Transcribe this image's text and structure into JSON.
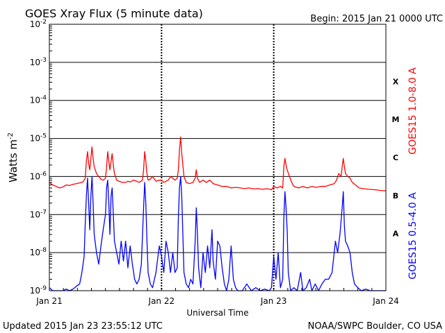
{
  "header": {
    "title": "GOES Xray Flux (5 minute data)",
    "begin": "Begin:  2015 Jan 21 0000 UTC"
  },
  "footer": {
    "updated": "Updated 2015 Jan 23 23:55:12 UTC",
    "credit": "NOAA/SWPC Boulder, CO USA"
  },
  "chart_data": {
    "type": "line",
    "title": "GOES Xray Flux (5 minute data)",
    "xlabel": "Universal Time",
    "ylabel": "Watts m",
    "ylabel_superscript": "-2",
    "yscale": "log",
    "ylim": [
      1e-09,
      0.01
    ],
    "y_ticks": [
      {
        "mantissa": "10",
        "exp": "-9",
        "value": 1e-09
      },
      {
        "mantissa": "10",
        "exp": "-8",
        "value": 1e-08
      },
      {
        "mantissa": "10",
        "exp": "-7",
        "value": 1e-07
      },
      {
        "mantissa": "10",
        "exp": "-6",
        "value": 1e-06
      },
      {
        "mantissa": "10",
        "exp": "-5",
        "value": 1e-05
      },
      {
        "mantissa": "10",
        "exp": "-4",
        "value": 0.0001
      },
      {
        "mantissa": "10",
        "exp": "-3",
        "value": 0.001
      },
      {
        "mantissa": "10",
        "exp": "-2",
        "value": 0.01
      }
    ],
    "xlim_days": [
      0,
      3
    ],
    "x_ticks": [
      {
        "label": "Jan 21",
        "day": 0
      },
      {
        "label": "Jan 22",
        "day": 1
      },
      {
        "label": "Jan 23",
        "day": 2
      },
      {
        "label": "Jan 24",
        "day": 3
      }
    ],
    "flare_classes": [
      {
        "label": "A",
        "value": 3.16e-08
      },
      {
        "label": "B",
        "value": 3.16e-07
      },
      {
        "label": "C",
        "value": 3.16e-06
      },
      {
        "label": "M",
        "value": 3.16e-05
      },
      {
        "label": "X",
        "value": 0.000316
      }
    ],
    "grid": true,
    "colors": {
      "long": "#ff0000",
      "short": "#0000ff",
      "grid": "#000000"
    },
    "series": [
      {
        "name": "GOES15 1.0-8.0 A",
        "color": "#ff0000",
        "points": [
          [
            0.0,
            7e-07
          ],
          [
            0.03,
            6e-07
          ],
          [
            0.06,
            5.5e-07
          ],
          [
            0.09,
            5e-07
          ],
          [
            0.12,
            5.3e-07
          ],
          [
            0.15,
            6e-07
          ],
          [
            0.18,
            5.8e-07
          ],
          [
            0.21,
            6.2e-07
          ],
          [
            0.24,
            6.5e-07
          ],
          [
            0.27,
            6.8e-07
          ],
          [
            0.3,
            7.2e-07
          ],
          [
            0.32,
            9e-07
          ],
          [
            0.33,
            2.5e-06
          ],
          [
            0.34,
            4.5e-06
          ],
          [
            0.35,
            2.2e-06
          ],
          [
            0.36,
            1.5e-06
          ],
          [
            0.37,
            3e-06
          ],
          [
            0.38,
            6e-06
          ],
          [
            0.39,
            3e-06
          ],
          [
            0.4,
            1.8e-06
          ],
          [
            0.42,
            1.2e-06
          ],
          [
            0.44,
            1e-06
          ],
          [
            0.46,
            8.5e-07
          ],
          [
            0.48,
            8e-07
          ],
          [
            0.5,
            9e-07
          ],
          [
            0.51,
            1.8e-06
          ],
          [
            0.52,
            4.5e-06
          ],
          [
            0.53,
            2.5e-06
          ],
          [
            0.54,
            1.5e-06
          ],
          [
            0.55,
            2.5e-06
          ],
          [
            0.56,
            4e-06
          ],
          [
            0.57,
            2e-06
          ],
          [
            0.58,
            1.2e-06
          ],
          [
            0.6,
            8e-07
          ],
          [
            0.62,
            7.5e-07
          ],
          [
            0.65,
            7e-07
          ],
          [
            0.68,
            7e-07
          ],
          [
            0.7,
            7.5e-07
          ],
          [
            0.72,
            7.2e-07
          ],
          [
            0.75,
            8e-07
          ],
          [
            0.78,
            7.5e-07
          ],
          [
            0.8,
            7e-07
          ],
          [
            0.83,
            8e-07
          ],
          [
            0.84,
            1.5e-06
          ],
          [
            0.85,
            4.5e-06
          ],
          [
            0.86,
            2.5e-06
          ],
          [
            0.87,
            1.2e-06
          ],
          [
            0.88,
            8e-07
          ],
          [
            0.9,
            8.5e-07
          ],
          [
            0.92,
            1e-06
          ],
          [
            0.95,
            7.5e-07
          ],
          [
            0.98,
            8e-07
          ],
          [
            1.0,
            8e-07
          ],
          [
            1.02,
            7e-07
          ],
          [
            1.04,
            7.5e-07
          ],
          [
            1.06,
            8e-07
          ],
          [
            1.08,
            1e-06
          ],
          [
            1.1,
            9e-07
          ],
          [
            1.12,
            8e-07
          ],
          [
            1.14,
            9e-07
          ],
          [
            1.15,
            1.5e-06
          ],
          [
            1.16,
            5e-06
          ],
          [
            1.17,
            1.1e-05
          ],
          [
            1.18,
            4e-06
          ],
          [
            1.19,
            2e-06
          ],
          [
            1.2,
            1e-06
          ],
          [
            1.22,
            7e-07
          ],
          [
            1.25,
            6.5e-07
          ],
          [
            1.28,
            7e-07
          ],
          [
            1.3,
            9e-07
          ],
          [
            1.31,
            1.5e-06
          ],
          [
            1.32,
            9e-07
          ],
          [
            1.34,
            7e-07
          ],
          [
            1.37,
            8e-07
          ],
          [
            1.4,
            7e-07
          ],
          [
            1.43,
            8e-07
          ],
          [
            1.46,
            6.5e-07
          ],
          [
            1.5,
            6e-07
          ],
          [
            1.54,
            5.5e-07
          ],
          [
            1.58,
            5.5e-07
          ],
          [
            1.62,
            5e-07
          ],
          [
            1.66,
            5.2e-07
          ],
          [
            1.7,
            5e-07
          ],
          [
            1.74,
            4.8e-07
          ],
          [
            1.78,
            5e-07
          ],
          [
            1.82,
            4.7e-07
          ],
          [
            1.86,
            4.8e-07
          ],
          [
            1.9,
            4.6e-07
          ],
          [
            1.94,
            4.8e-07
          ],
          [
            1.98,
            4.5e-07
          ],
          [
            2.0,
            5.5e-07
          ],
          [
            2.03,
            5e-07
          ],
          [
            2.06,
            5.5e-07
          ],
          [
            2.08,
            5e-07
          ],
          [
            2.09,
            1.8e-06
          ],
          [
            2.1,
            3e-06
          ],
          [
            2.11,
            2e-06
          ],
          [
            2.12,
            1.5e-06
          ],
          [
            2.14,
            1e-06
          ],
          [
            2.16,
            7e-07
          ],
          [
            2.18,
            5.5e-07
          ],
          [
            2.22,
            5e-07
          ],
          [
            2.26,
            5.5e-07
          ],
          [
            2.3,
            5e-07
          ],
          [
            2.34,
            5.5e-07
          ],
          [
            2.38,
            5.2e-07
          ],
          [
            2.42,
            5.5e-07
          ],
          [
            2.46,
            5.5e-07
          ],
          [
            2.5,
            6e-07
          ],
          [
            2.54,
            6.5e-07
          ],
          [
            2.56,
            8e-07
          ],
          [
            2.58,
            1.2e-06
          ],
          [
            2.6,
            1e-06
          ],
          [
            2.61,
            1.8e-06
          ],
          [
            2.62,
            3e-06
          ],
          [
            2.63,
            1.8e-06
          ],
          [
            2.64,
            1.2e-06
          ],
          [
            2.66,
            1e-06
          ],
          [
            2.68,
            9e-07
          ],
          [
            2.7,
            7e-07
          ],
          [
            2.73,
            6e-07
          ],
          [
            2.76,
            5e-07
          ],
          [
            2.8,
            4.8e-07
          ],
          [
            2.85,
            4.6e-07
          ],
          [
            2.9,
            4.5e-07
          ],
          [
            2.95,
            4.3e-07
          ],
          [
            3.0,
            4.2e-07
          ]
        ]
      },
      {
        "name": "GOES15 0.5-4.0 A",
        "color": "#0000ff",
        "points": [
          [
            0.0,
            1.2e-09
          ],
          [
            0.03,
            1e-09
          ],
          [
            0.06,
            1e-09
          ],
          [
            0.09,
            1e-09
          ],
          [
            0.12,
            1e-09
          ],
          [
            0.15,
            1.1e-09
          ],
          [
            0.18,
            1e-09
          ],
          [
            0.21,
            1.1e-09
          ],
          [
            0.24,
            1.3e-09
          ],
          [
            0.27,
            1.5e-09
          ],
          [
            0.29,
            3e-09
          ],
          [
            0.31,
            8e-09
          ],
          [
            0.32,
            6e-08
          ],
          [
            0.33,
            3e-07
          ],
          [
            0.34,
            9e-07
          ],
          [
            0.35,
            2e-07
          ],
          [
            0.36,
            4e-08
          ],
          [
            0.37,
            3e-07
          ],
          [
            0.38,
            1e-06
          ],
          [
            0.39,
            2e-07
          ],
          [
            0.4,
            3e-08
          ],
          [
            0.42,
            1e-08
          ],
          [
            0.44,
            5e-09
          ],
          [
            0.46,
            1.5e-08
          ],
          [
            0.48,
            4e-08
          ],
          [
            0.5,
            1e-07
          ],
          [
            0.51,
            5e-07
          ],
          [
            0.52,
            8e-07
          ],
          [
            0.53,
            2e-07
          ],
          [
            0.54,
            3e-08
          ],
          [
            0.55,
            3e-07
          ],
          [
            0.56,
            5e-07
          ],
          [
            0.57,
            1e-07
          ],
          [
            0.58,
            2e-08
          ],
          [
            0.6,
            1e-08
          ],
          [
            0.62,
            5e-09
          ],
          [
            0.64,
            2e-08
          ],
          [
            0.66,
            6e-09
          ],
          [
            0.68,
            2e-08
          ],
          [
            0.7,
            4e-09
          ],
          [
            0.72,
            1.5e-08
          ],
          [
            0.74,
            5e-09
          ],
          [
            0.76,
            2e-09
          ],
          [
            0.78,
            1.5e-09
          ],
          [
            0.8,
            2e-09
          ],
          [
            0.82,
            5e-09
          ],
          [
            0.84,
            1.5e-07
          ],
          [
            0.85,
            7e-07
          ],
          [
            0.86,
            2e-07
          ],
          [
            0.87,
            2e-08
          ],
          [
            0.88,
            3e-09
          ],
          [
            0.9,
            1.5e-09
          ],
          [
            0.92,
            1.2e-09
          ],
          [
            0.95,
            3e-09
          ],
          [
            0.98,
            1.5e-08
          ],
          [
            1.0,
            8e-09
          ],
          [
            1.02,
            3e-09
          ],
          [
            1.04,
            2e-08
          ],
          [
            1.06,
            1e-08
          ],
          [
            1.08,
            3e-09
          ],
          [
            1.1,
            1e-08
          ],
          [
            1.12,
            3e-09
          ],
          [
            1.14,
            4e-09
          ],
          [
            1.15,
            8e-08
          ],
          [
            1.16,
            5e-07
          ],
          [
            1.17,
            1e-06
          ],
          [
            1.18,
            3e-07
          ],
          [
            1.19,
            3e-08
          ],
          [
            1.2,
            3e-09
          ],
          [
            1.22,
            1.5e-09
          ],
          [
            1.24,
            1.2e-09
          ],
          [
            1.26,
            2e-09
          ],
          [
            1.28,
            1.5e-09
          ],
          [
            1.3,
            2e-08
          ],
          [
            1.31,
            1.5e-07
          ],
          [
            1.32,
            3e-08
          ],
          [
            1.33,
            4e-09
          ],
          [
            1.35,
            1.2e-09
          ],
          [
            1.37,
            1e-08
          ],
          [
            1.39,
            3e-09
          ],
          [
            1.41,
            1.5e-08
          ],
          [
            1.43,
            4e-09
          ],
          [
            1.45,
            4e-08
          ],
          [
            1.46,
            6e-09
          ],
          [
            1.48,
            2e-09
          ],
          [
            1.5,
            2e-08
          ],
          [
            1.52,
            1.5e-08
          ],
          [
            1.54,
            4e-09
          ],
          [
            1.56,
            1.5e-09
          ],
          [
            1.58,
            1e-09
          ],
          [
            1.6,
            2e-09
          ],
          [
            1.62,
            1.5e-08
          ],
          [
            1.64,
            2e-09
          ],
          [
            1.66,
            1.2e-09
          ],
          [
            1.68,
            1e-09
          ],
          [
            1.72,
            1e-09
          ],
          [
            1.76,
            1.5e-09
          ],
          [
            1.8,
            1e-09
          ],
          [
            1.84,
            1.2e-09
          ],
          [
            1.88,
            1e-09
          ],
          [
            1.92,
            1.1e-09
          ],
          [
            1.96,
            1e-09
          ],
          [
            1.98,
            1.2e-09
          ],
          [
            2.0,
            8e-09
          ],
          [
            2.02,
            2e-09
          ],
          [
            2.04,
            1e-08
          ],
          [
            2.06,
            1.2e-09
          ],
          [
            2.08,
            2e-09
          ],
          [
            2.09,
            8e-08
          ],
          [
            2.1,
            4e-07
          ],
          [
            2.11,
            1.5e-07
          ],
          [
            2.12,
            4e-08
          ],
          [
            2.13,
            3e-09
          ],
          [
            2.15,
            1e-09
          ],
          [
            2.18,
            1.2e-09
          ],
          [
            2.21,
            1e-09
          ],
          [
            2.24,
            3e-09
          ],
          [
            2.26,
            1e-09
          ],
          [
            2.29,
            1.2e-09
          ],
          [
            2.32,
            2e-09
          ],
          [
            2.34,
            1e-09
          ],
          [
            2.37,
            1.5e-09
          ],
          [
            2.4,
            1e-09
          ],
          [
            2.43,
            1.5e-09
          ],
          [
            2.46,
            2e-09
          ],
          [
            2.49,
            2e-09
          ],
          [
            2.52,
            3e-09
          ],
          [
            2.55,
            2e-08
          ],
          [
            2.57,
            1e-08
          ],
          [
            2.59,
            3e-08
          ],
          [
            2.61,
            1.5e-07
          ],
          [
            2.62,
            4e-07
          ],
          [
            2.63,
            5e-08
          ],
          [
            2.64,
            2e-08
          ],
          [
            2.66,
            1.5e-08
          ],
          [
            2.68,
            1e-08
          ],
          [
            2.7,
            3e-09
          ],
          [
            2.72,
            1.5e-09
          ],
          [
            2.75,
            1.2e-09
          ],
          [
            2.78,
            1e-09
          ],
          [
            2.82,
            1.1e-09
          ],
          [
            2.86,
            1e-09
          ],
          [
            2.9,
            1e-09
          ],
          [
            2.95,
            1e-09
          ],
          [
            3.0,
            1e-09
          ]
        ]
      }
    ]
  }
}
